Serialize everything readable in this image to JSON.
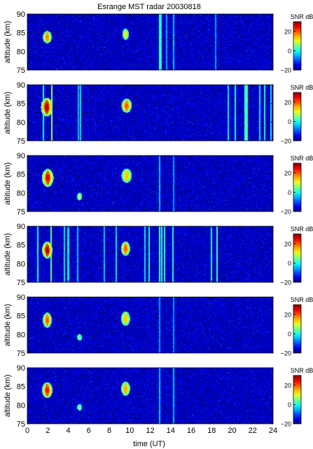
{
  "chart_data": {
    "type": "heatmap",
    "title": "Esrange MST radar 20030818",
    "xlabel": "time (UT)",
    "ylabel": "altitude (km)",
    "xlim": [
      0,
      24
    ],
    "ylim": [
      75,
      90
    ],
    "x_ticks": [
      "0",
      "2",
      "4",
      "6",
      "8",
      "10",
      "12",
      "14",
      "16",
      "18",
      "20",
      "22",
      "24"
    ],
    "y_ticks": [
      "75",
      "80",
      "85",
      "90"
    ],
    "colorbar": {
      "label": "SNR dB",
      "range": [
        -20,
        30
      ],
      "ticks": [
        "20",
        "0",
        "−20"
      ],
      "colormap": "jet"
    },
    "panel_count": 6,
    "panels": [
      {
        "echoes": [
          {
            "t": 1.95,
            "alt": 83.8,
            "dt": 0.35,
            "dalt": 2.6,
            "snr": 18
          },
          {
            "t": 9.6,
            "alt": 84.6,
            "dt": 0.25,
            "dalt": 2.4,
            "snr": 12
          }
        ],
        "vertical_bands": [
          {
            "t": 12.9,
            "snr": 2
          },
          {
            "t": 13.05,
            "snr": 0
          },
          {
            "t": 13.6,
            "snr": -6
          },
          {
            "t": 14.3,
            "snr": -4
          },
          {
            "t": 18.4,
            "snr": -6
          }
        ]
      },
      {
        "echoes": [
          {
            "t": 1.9,
            "alt": 84.0,
            "dt": 0.45,
            "dalt": 4.0,
            "snr": 28
          },
          {
            "t": 9.7,
            "alt": 84.4,
            "dt": 0.4,
            "dalt": 3.0,
            "snr": 20
          }
        ],
        "vertical_bands": [
          {
            "t": 1.6,
            "snr": 0
          },
          {
            "t": 2.4,
            "snr": 6
          },
          {
            "t": 5.0,
            "snr": -4
          },
          {
            "t": 5.2,
            "snr": -2
          },
          {
            "t": 19.6,
            "snr": -2
          },
          {
            "t": 20.3,
            "snr": 0
          },
          {
            "t": 21.3,
            "snr": 2
          },
          {
            "t": 21.5,
            "snr": 2
          },
          {
            "t": 22.7,
            "snr": -2
          },
          {
            "t": 23.2,
            "snr": 0
          },
          {
            "t": 23.8,
            "snr": -2
          }
        ]
      },
      {
        "echoes": [
          {
            "t": 2.0,
            "alt": 84.0,
            "dt": 0.45,
            "dalt": 3.8,
            "snr": 26
          },
          {
            "t": 9.7,
            "alt": 84.6,
            "dt": 0.4,
            "dalt": 3.0,
            "snr": 14
          },
          {
            "t": 5.1,
            "alt": 79.0,
            "dt": 0.2,
            "dalt": 1.6,
            "snr": 8
          }
        ],
        "vertical_bands": [
          {
            "t": 12.9,
            "snr": -4
          },
          {
            "t": 14.3,
            "snr": -6
          }
        ]
      },
      {
        "echoes": [
          {
            "t": 1.95,
            "alt": 83.6,
            "dt": 0.4,
            "dalt": 3.6,
            "snr": 28
          },
          {
            "t": 9.6,
            "alt": 84.0,
            "dt": 0.35,
            "dalt": 3.0,
            "snr": 20
          }
        ],
        "vertical_bands": [
          {
            "t": 1.0,
            "snr": 0
          },
          {
            "t": 2.3,
            "snr": 4
          },
          {
            "t": 3.6,
            "snr": -2
          },
          {
            "t": 4.0,
            "snr": -2
          },
          {
            "t": 4.9,
            "snr": -4
          },
          {
            "t": 7.5,
            "snr": -4
          },
          {
            "t": 8.7,
            "snr": -2
          },
          {
            "t": 11.5,
            "snr": -2
          },
          {
            "t": 11.9,
            "snr": 0
          },
          {
            "t": 12.9,
            "snr": 2
          },
          {
            "t": 13.1,
            "snr": 2
          },
          {
            "t": 13.4,
            "snr": 0
          },
          {
            "t": 14.2,
            "snr": 0
          },
          {
            "t": 18.0,
            "snr": 0
          },
          {
            "t": 18.5,
            "snr": 2
          }
        ]
      },
      {
        "echoes": [
          {
            "t": 1.95,
            "alt": 83.8,
            "dt": 0.35,
            "dalt": 3.2,
            "snr": 20
          },
          {
            "t": 9.6,
            "alt": 84.2,
            "dt": 0.35,
            "dalt": 3.0,
            "snr": 14
          },
          {
            "t": 5.1,
            "alt": 79.2,
            "dt": 0.2,
            "dalt": 1.4,
            "snr": 4
          }
        ],
        "vertical_bands": [
          {
            "t": 12.9,
            "snr": -6
          },
          {
            "t": 14.3,
            "snr": -6
          }
        ]
      },
      {
        "echoes": [
          {
            "t": 1.95,
            "alt": 84.0,
            "dt": 0.4,
            "dalt": 3.4,
            "snr": 24
          },
          {
            "t": 9.6,
            "alt": 84.4,
            "dt": 0.35,
            "dalt": 3.0,
            "snr": 16
          },
          {
            "t": 5.1,
            "alt": 79.4,
            "dt": 0.2,
            "dalt": 1.4,
            "snr": 4
          }
        ],
        "vertical_bands": [
          {
            "t": 12.9,
            "snr": -4
          },
          {
            "t": 14.3,
            "snr": -4
          }
        ]
      }
    ]
  }
}
